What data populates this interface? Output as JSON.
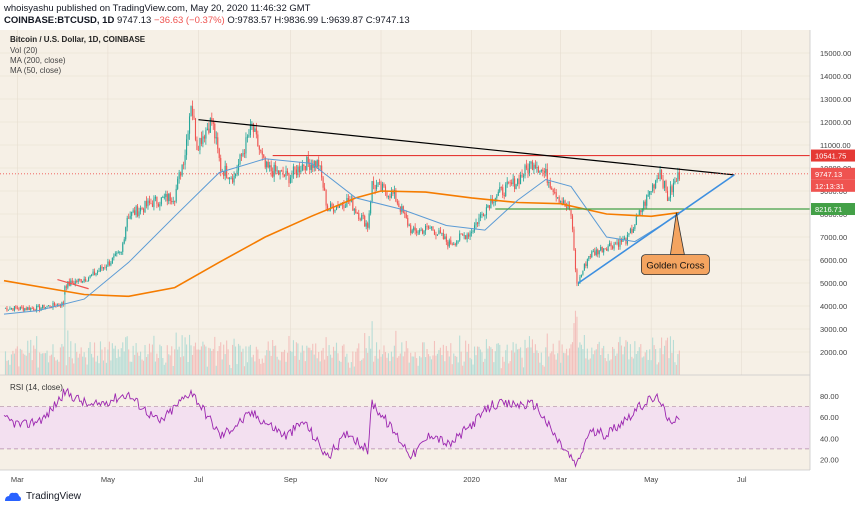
{
  "header": {
    "line1": "whoisyashu published on TradingView.com, May 20, 2020 11:46:32 GMT",
    "symbol": "COINBASE:BTCUSD, 1D",
    "price": "9747.13",
    "change": "−36.63 (−0.37%)",
    "open": "O:9783.57",
    "high": "H:9836.99",
    "low": "L:9639.87",
    "close": "C:9747.13"
  },
  "chart_title": "Bitcoin / U.S. Dollar, 1D, COINBASE",
  "indicators": [
    "Vol (20)",
    "MA (200, close)",
    "MA (50, close)"
  ],
  "rsi_title": "RSI (14, close)",
  "logo_text": "TradingView",
  "colors": {
    "up": "#26a69a",
    "down": "#ef5350",
    "ma200": "#f57c00",
    "ma50": "#5b9bd5",
    "resistance": "#e53935",
    "support": "#43a047",
    "trendline": "#000000",
    "ascending": "#3d8fe0",
    "rsi": "#9c27b0",
    "rsi_band": "#f3e0f0",
    "annotation_fill": "#f4a460"
  },
  "chart_data": {
    "type": "candlestick",
    "title": "Bitcoin / U.S. Dollar, 1D, COINBASE",
    "ylim": [
      1000,
      16000
    ],
    "y_ticks": [
      2000,
      3000,
      4000,
      5000,
      6000,
      7000,
      8000,
      9000,
      10000,
      11000,
      12000,
      13000,
      14000,
      15000
    ],
    "y_tick_labels": [
      "2000.00",
      "3000.00",
      "4000.00",
      "5000.00",
      "6000.00",
      "7000.00",
      "8000.00",
      "9000.00",
      "10000.00",
      "11000.00",
      "12000.00",
      "13000.00",
      "14000.00",
      "15000.00"
    ],
    "x_range": [
      "2019-02-20",
      "2020-08-16"
    ],
    "x_ticks": [
      {
        "date": "2019-03-01",
        "label": "Mar"
      },
      {
        "date": "2019-05-01",
        "label": "May"
      },
      {
        "date": "2019-07-01",
        "label": "Jul"
      },
      {
        "date": "2019-09-01",
        "label": "Sep"
      },
      {
        "date": "2019-11-01",
        "label": "Nov"
      },
      {
        "date": "2020-01-01",
        "label": "2020"
      },
      {
        "date": "2020-03-01",
        "label": "Mar"
      },
      {
        "date": "2020-05-01",
        "label": "May"
      },
      {
        "date": "2020-07-01",
        "label": "Jul"
      }
    ],
    "close_path": [
      [
        "2019-02-20",
        3900
      ],
      [
        "2019-03-15",
        3900
      ],
      [
        "2019-04-01",
        4100
      ],
      [
        "2019-04-02",
        4900
      ],
      [
        "2019-04-20",
        5300
      ],
      [
        "2019-05-10",
        6300
      ],
      [
        "2019-05-14",
        7900
      ],
      [
        "2019-05-31",
        8500
      ],
      [
        "2019-06-15",
        8800
      ],
      [
        "2019-06-22",
        10700
      ],
      [
        "2019-06-26",
        12900
      ],
      [
        "2019-06-30",
        11000
      ],
      [
        "2019-07-10",
        12100
      ],
      [
        "2019-07-16",
        10000
      ],
      [
        "2019-07-25",
        9600
      ],
      [
        "2019-08-06",
        11800
      ],
      [
        "2019-08-15",
        10000
      ],
      [
        "2019-08-31",
        9600
      ],
      [
        "2019-09-10",
        10200
      ],
      [
        "2019-09-20",
        10200
      ],
      [
        "2019-09-26",
        8200
      ],
      [
        "2019-10-10",
        8600
      ],
      [
        "2019-10-23",
        7500
      ],
      [
        "2019-10-26",
        9300
      ],
      [
        "2019-11-10",
        8800
      ],
      [
        "2019-11-22",
        7200
      ],
      [
        "2019-12-05",
        7400
      ],
      [
        "2019-12-17",
        6700
      ],
      [
        "2019-12-31",
        7200
      ],
      [
        "2020-01-15",
        8700
      ],
      [
        "2020-01-31",
        9400
      ],
      [
        "2020-02-12",
        10300
      ],
      [
        "2020-02-20",
        9700
      ],
      [
        "2020-03-01",
        8600
      ],
      [
        "2020-03-08",
        8000
      ],
      [
        "2020-03-12",
        4900
      ],
      [
        "2020-03-20",
        6200
      ],
      [
        "2020-04-01",
        6600
      ],
      [
        "2020-04-15",
        6900
      ],
      [
        "2020-04-29",
        8800
      ],
      [
        "2020-05-07",
        9900
      ],
      [
        "2020-05-12",
        8700
      ],
      [
        "2020-05-20",
        9747
      ]
    ],
    "ma200": [
      [
        "2019-02-20",
        5100
      ],
      [
        "2019-04-15",
        4500
      ],
      [
        "2019-05-15",
        4420
      ],
      [
        "2019-06-15",
        4800
      ],
      [
        "2019-07-15",
        5900
      ],
      [
        "2019-08-15",
        7000
      ],
      [
        "2019-09-15",
        7900
      ],
      [
        "2019-10-15",
        8700
      ],
      [
        "2019-11-01",
        9000
      ],
      [
        "2019-12-01",
        8950
      ],
      [
        "2020-01-01",
        8700
      ],
      [
        "2020-02-01",
        8500
      ],
      [
        "2020-03-01",
        8450
      ],
      [
        "2020-04-01",
        8000
      ],
      [
        "2020-05-01",
        7900
      ],
      [
        "2020-05-20",
        8060
      ]
    ],
    "ma50": [
      [
        "2019-02-20",
        3650
      ],
      [
        "2019-03-15",
        3800
      ],
      [
        "2019-04-15",
        4300
      ],
      [
        "2019-05-15",
        5900
      ],
      [
        "2019-06-15",
        7900
      ],
      [
        "2019-07-15",
        9800
      ],
      [
        "2019-08-15",
        10400
      ],
      [
        "2019-09-15",
        10200
      ],
      [
        "2019-10-15",
        8700
      ],
      [
        "2019-11-15",
        8200
      ],
      [
        "2019-12-15",
        7500
      ],
      [
        "2020-01-10",
        7300
      ],
      [
        "2020-02-01",
        8600
      ],
      [
        "2020-02-20",
        9500
      ],
      [
        "2020-03-08",
        9200
      ],
      [
        "2020-04-01",
        7000
      ],
      [
        "2020-04-20",
        6800
      ],
      [
        "2020-05-20",
        8000
      ]
    ],
    "levels": [
      {
        "name": "resistance",
        "value": 10541.75,
        "label": "10541.75",
        "from": "2019-08-20"
      },
      {
        "name": "support",
        "value": 8216.71,
        "label": "8216.71",
        "from": "2020-01-17"
      }
    ],
    "price_label": {
      "value": 9747.13,
      "label": "9747.13",
      "timer": "12:13:31"
    },
    "trendlines": [
      {
        "name": "descending-trendline",
        "from": [
          "2019-07-01",
          12100
        ],
        "to": [
          "2020-06-26",
          9700
        ]
      },
      {
        "name": "ascending-trendline",
        "from": [
          "2020-03-13",
          5000
        ],
        "to": [
          "2020-06-26",
          9700
        ]
      },
      {
        "name": "early-red-trendline",
        "from": [
          "2019-03-28",
          5150
        ],
        "to": [
          "2019-04-18",
          4750
        ]
      }
    ],
    "annotation": {
      "text": "Golden Cross",
      "at": [
        "2020-05-18",
        8060
      ]
    },
    "rsi": {
      "ylim": [
        10,
        100
      ],
      "y_ticks": [
        20,
        40,
        60,
        80
      ],
      "y_tick_labels": [
        "20.00",
        "40.00",
        "60.00",
        "80.00"
      ],
      "band": [
        30,
        70
      ],
      "values": [
        [
          "2019-02-20",
          58
        ],
        [
          "2019-03-05",
          52
        ],
        [
          "2019-03-20",
          60
        ],
        [
          "2019-04-02",
          84
        ],
        [
          "2019-04-20",
          70
        ],
        [
          "2019-05-14",
          82
        ],
        [
          "2019-06-05",
          55
        ],
        [
          "2019-06-26",
          85
        ],
        [
          "2019-07-16",
          42
        ],
        [
          "2019-08-06",
          64
        ],
        [
          "2019-08-29",
          42
        ],
        [
          "2019-09-10",
          56
        ],
        [
          "2019-09-26",
          22
        ],
        [
          "2019-10-10",
          46
        ],
        [
          "2019-10-23",
          28
        ],
        [
          "2019-10-26",
          74
        ],
        [
          "2019-11-22",
          23
        ],
        [
          "2019-12-05",
          45
        ],
        [
          "2019-12-17",
          33
        ],
        [
          "2020-01-15",
          72
        ],
        [
          "2020-02-13",
          72
        ],
        [
          "2020-02-28",
          38
        ],
        [
          "2020-03-12",
          14
        ],
        [
          "2020-03-20",
          46
        ],
        [
          "2020-04-01",
          44
        ],
        [
          "2020-04-29",
          76
        ],
        [
          "2020-05-07",
          78
        ],
        [
          "2020-05-12",
          55
        ],
        [
          "2020-05-20",
          62
        ]
      ]
    }
  }
}
